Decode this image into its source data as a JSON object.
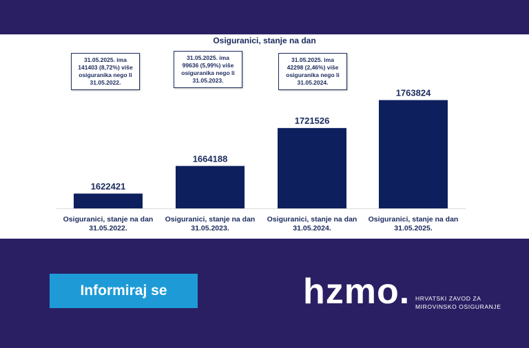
{
  "chart_data": {
    "type": "bar",
    "title": "Osiguranici, stanje na dan",
    "categories": [
      [
        "Osiguranici, stanje na dan",
        "31.05.2022."
      ],
      [
        "Osiguranici, stanje na dan",
        "31.05.2023."
      ],
      [
        "Osiguranici, stanje na dan",
        "31.05.2024."
      ],
      [
        "Osiguranici, stanje na dan",
        "31.05.2025."
      ]
    ],
    "values": [
      1622421,
      1664188,
      1721526,
      1763824
    ],
    "value_labels": [
      "1622421",
      "1664188",
      "1721526",
      "1763824"
    ],
    "ylim": [
      1600000,
      1780000
    ],
    "bar_color": "#0d1f5c",
    "grid": false,
    "annotations": [
      [
        "31.05.2025. ima",
        "141403 (8,72%) više",
        "osiguranika nego li",
        "31.05.2022."
      ],
      [
        "31.05.2025. ima",
        "99636 (5,99%) više",
        "osiguranika nego li",
        "31.05.2023."
      ],
      [
        "31.05.2025. ima",
        "42298 (2,46%) više",
        "osiguranika nego li",
        "31.05.2024."
      ]
    ]
  },
  "cta": {
    "label": "Informiraj se",
    "color": "#1e9bd7"
  },
  "logo": {
    "wordmark": "hzmo.",
    "line1": "HRVATSKI ZAVOD ZA",
    "line2": "MIROVINSKO OSIGURANJE"
  },
  "colors": {
    "background": "#2a1f63",
    "panel": "#ffffff",
    "text": "#1a2a5c"
  }
}
